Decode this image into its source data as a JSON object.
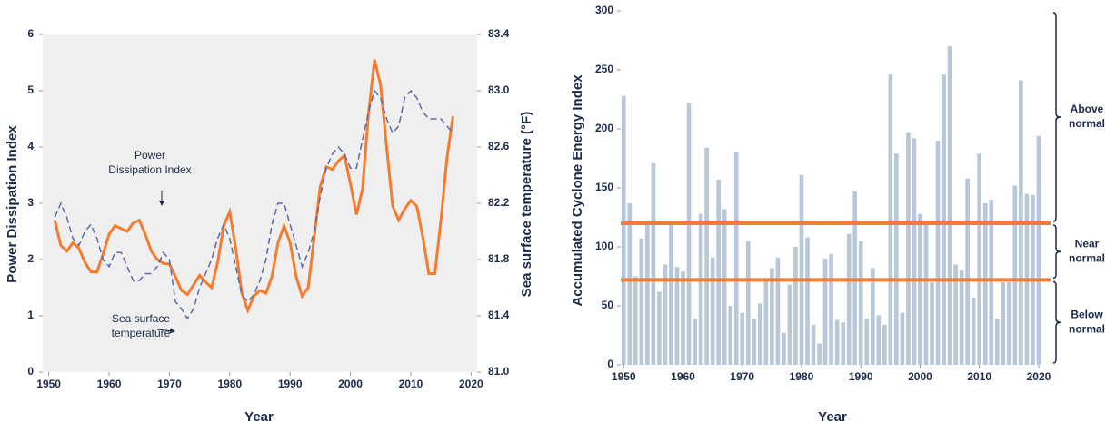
{
  "chart_data": [
    {
      "type": "line",
      "xlabel": "Year",
      "ylabel": "Power Dissipation Index",
      "y2label": "Sea surface temperature (°F)",
      "x": [
        1951,
        1952,
        1953,
        1954,
        1955,
        1956,
        1957,
        1958,
        1959,
        1960,
        1961,
        1962,
        1963,
        1964,
        1965,
        1966,
        1967,
        1968,
        1969,
        1970,
        1971,
        1972,
        1973,
        1974,
        1975,
        1976,
        1977,
        1978,
        1979,
        1980,
        1981,
        1982,
        1983,
        1984,
        1985,
        1986,
        1987,
        1988,
        1989,
        1990,
        1991,
        1992,
        1993,
        1994,
        1995,
        1996,
        1997,
        1998,
        1999,
        2000,
        2001,
        2002,
        2003,
        2004,
        2005,
        2006,
        2007,
        2008,
        2009,
        2010,
        2011,
        2012,
        2013,
        2014,
        2015,
        2016,
        2017
      ],
      "xlim": [
        1949,
        2021
      ],
      "xticks": [
        1950,
        1960,
        1970,
        1980,
        1990,
        2000,
        2010,
        2020
      ],
      "ylim": [
        0,
        6
      ],
      "yticks": [
        0,
        1,
        2,
        3,
        4,
        5,
        6
      ],
      "y2lim": [
        81,
        83.4
      ],
      "y2ticks": [
        {
          "value": 81,
          "label": "81.0"
        },
        81.4,
        81.8,
        82.2,
        82.6,
        {
          "value": 83,
          "label": "83.0"
        },
        83.4
      ],
      "series": [
        {
          "color": "#f47c30",
          "dashed": false,
          "values": [
            2.7,
            2.25,
            2.15,
            2.3,
            2.2,
            1.95,
            1.78,
            1.78,
            2.1,
            2.45,
            2.6,
            2.55,
            2.5,
            2.65,
            2.7,
            2.45,
            2.15,
            2.0,
            1.93,
            1.92,
            1.7,
            1.45,
            1.38,
            1.55,
            1.72,
            1.6,
            1.5,
            1.95,
            2.6,
            2.85,
            2.2,
            1.4,
            1.1,
            1.35,
            1.45,
            1.4,
            1.7,
            2.3,
            2.6,
            2.3,
            1.7,
            1.35,
            1.5,
            2.4,
            3.3,
            3.65,
            3.6,
            3.75,
            3.85,
            3.35,
            2.8,
            3.25,
            4.6,
            5.55,
            5.1,
            4.0,
            2.95,
            2.7,
            2.9,
            3.05,
            2.95,
            2.4,
            1.75,
            1.75,
            2.7,
            3.8,
            4.55
          ]
        },
        {
          "color": "#5b6aa8",
          "dashed": true,
          "axis": "y2",
          "values": [
            82.1,
            82.2,
            82.1,
            81.95,
            81.9,
            82.0,
            82.05,
            81.95,
            81.8,
            81.75,
            81.85,
            81.85,
            81.75,
            81.65,
            81.65,
            81.7,
            81.7,
            81.75,
            81.85,
            81.8,
            81.5,
            81.45,
            81.38,
            81.45,
            81.6,
            81.7,
            81.8,
            81.95,
            82.05,
            81.95,
            81.75,
            81.55,
            81.5,
            81.55,
            81.65,
            81.8,
            82.05,
            82.2,
            82.2,
            82.05,
            81.9,
            81.75,
            81.85,
            82.0,
            82.25,
            82.45,
            82.55,
            82.6,
            82.55,
            82.45,
            82.45,
            82.65,
            82.85,
            83.0,
            82.95,
            82.8,
            82.7,
            82.75,
            82.95,
            83.0,
            82.95,
            82.85,
            82.8,
            82.8,
            82.8,
            82.75,
            82.7
          ]
        }
      ],
      "annotations": [
        {
          "lines": [
            "Power",
            "Dissipation Index"
          ]
        },
        {
          "lines": [
            "Sea surface",
            "temperature"
          ]
        }
      ]
    },
    {
      "type": "bar",
      "xlabel": "Year",
      "ylabel": "Accumulated Cyclone Energy Index",
      "x": [
        1950,
        1951,
        1952,
        1953,
        1954,
        1955,
        1956,
        1957,
        1958,
        1959,
        1960,
        1961,
        1962,
        1963,
        1964,
        1965,
        1966,
        1967,
        1968,
        1969,
        1970,
        1971,
        1972,
        1973,
        1974,
        1975,
        1976,
        1977,
        1978,
        1979,
        1980,
        1981,
        1982,
        1983,
        1984,
        1985,
        1986,
        1987,
        1988,
        1989,
        1990,
        1991,
        1992,
        1993,
        1994,
        1995,
        1996,
        1997,
        1998,
        1999,
        2000,
        2001,
        2002,
        2003,
        2004,
        2005,
        2006,
        2007,
        2008,
        2009,
        2010,
        2011,
        2012,
        2013,
        2014,
        2015,
        2016,
        2017,
        2018,
        2019,
        2020
      ],
      "values": [
        228,
        137,
        75,
        107,
        120,
        171,
        62,
        85,
        120,
        83,
        79,
        222,
        39,
        128,
        184,
        91,
        157,
        132,
        50,
        180,
        44,
        105,
        39,
        52,
        72,
        82,
        91,
        27,
        68,
        100,
        161,
        108,
        34,
        18,
        90,
        94,
        38,
        36,
        111,
        147,
        105,
        39,
        82,
        42,
        34,
        246,
        179,
        44,
        197,
        192,
        128,
        119,
        70,
        190,
        246,
        270,
        85,
        80,
        158,
        57,
        179,
        137,
        140,
        39,
        70,
        70,
        152,
        241,
        145,
        144,
        194
      ],
      "color": "#b9c8d8",
      "xlim": [
        1949.5,
        2022
      ],
      "xticks": [
        1950,
        1960,
        1970,
        1980,
        1990,
        2000,
        2010,
        2020
      ],
      "ylim": [
        0,
        300
      ],
      "yticks": [
        0,
        50,
        100,
        150,
        200,
        250,
        300
      ],
      "hlines": {
        "values": [
          120,
          72
        ],
        "color": "#f47c30"
      },
      "brackets": [
        {
          "lines": [
            "Above",
            "normal"
          ]
        },
        {
          "lines": [
            "Near",
            "normal"
          ]
        },
        {
          "lines": [
            "Below",
            "normal"
          ]
        }
      ]
    }
  ]
}
